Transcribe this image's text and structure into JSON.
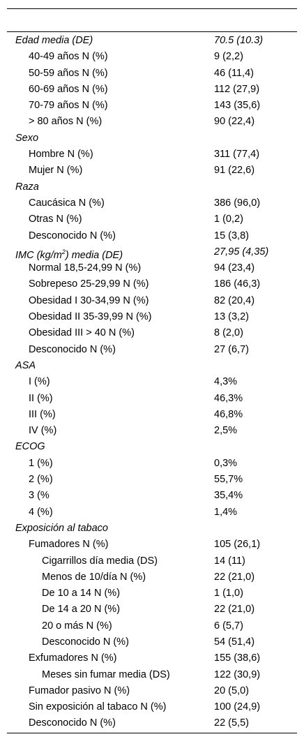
{
  "rows": [
    {
      "label": "Edad media (DE)",
      "value": "70.5 (10.3)",
      "level": 0
    },
    {
      "label": "40-49 años N (%)",
      "value": "9 (2,2)",
      "level": 1
    },
    {
      "label": "50-59 años N (%)",
      "value": "46 (11,4)",
      "level": 1
    },
    {
      "label": "60-69 años N (%)",
      "value": "112 (27,9)",
      "level": 1
    },
    {
      "label": "70-79 años N (%)",
      "value": "143 (35,6)",
      "level": 1
    },
    {
      "label": "> 80 años N (%)",
      "value": "90 (22,4)",
      "level": 1
    },
    {
      "label": "Sexo",
      "value": "",
      "level": 0
    },
    {
      "label": "Hombre N (%)",
      "value": "311 (77,4)",
      "level": 1
    },
    {
      "label": "Mujer N (%)",
      "value": "91 (22,6)",
      "level": 1
    },
    {
      "label": "Raza",
      "value": "",
      "level": 0
    },
    {
      "label": "Caucásica N (%)",
      "value": "386 (96,0)",
      "level": 1
    },
    {
      "label": "Otras N (%)",
      "value": "1 (0,2)",
      "level": 1
    },
    {
      "label": "Desconocido N (%)",
      "value": "15 (3,8)",
      "level": 1
    },
    {
      "label": "IMC (kg/m",
      "sup": "2",
      "label_after": ") media (DE)",
      "value": "27,95 (4,35)",
      "level": 0
    },
    {
      "label": "Normal 18,5-24,99 N (%)",
      "value": "94 (23,4)",
      "level": 1
    },
    {
      "label": "Sobrepeso 25-29,99 N (%)",
      "value": "186 (46,3)",
      "level": 1
    },
    {
      "label": "Obesidad I 30-34,99 N (%)",
      "value": "82 (20,4)",
      "level": 1
    },
    {
      "label": "Obesidad II 35-39,99 N (%)",
      "value": "13 (3,2)",
      "level": 1
    },
    {
      "label": "Obesidad III > 40 N (%)",
      "value": "8 (2,0)",
      "level": 1
    },
    {
      "label": "Desconocido N (%)",
      "value": "27 (6,7)",
      "level": 1
    },
    {
      "label": "ASA",
      "value": "",
      "level": 0
    },
    {
      "label": "I (%)",
      "value": "4,3%",
      "level": 1
    },
    {
      "label": "II (%)",
      "value": "46,3%",
      "level": 1
    },
    {
      "label": "III (%)",
      "value": "46,8%",
      "level": 1
    },
    {
      "label": "IV (%)",
      "value": "2,5%",
      "level": 1
    },
    {
      "label": "ECOG",
      "value": "",
      "level": 0
    },
    {
      "label": "1 (%)",
      "value": "0,3%",
      "level": 1
    },
    {
      "label": "2 (%)",
      "value": "55,7%",
      "level": 1
    },
    {
      "label": "3 (%",
      "value": "35,4%",
      "level": 1
    },
    {
      "label": "4 (%)",
      "value": "1,4%",
      "level": 1
    },
    {
      "label": "Exposición al tabaco",
      "value": "",
      "level": 0
    },
    {
      "label": "Fumadores N (%)",
      "value": "105 (26,1)",
      "level": 1
    },
    {
      "label": "Cigarrillos día media (DS)",
      "value": "14 (11)",
      "level": 2
    },
    {
      "label": "Menos de 10/día N (%)",
      "value": "22 (21,0)",
      "level": 2
    },
    {
      "label": "De 10 a 14 N (%)",
      "value": "1 (1,0)",
      "level": 2
    },
    {
      "label": "De 14 a 20 N (%)",
      "value": "22 (21,0)",
      "level": 2
    },
    {
      "label": "20 o más N (%)",
      "value": "6 (5,7)",
      "level": 2
    },
    {
      "label": "Desconocido N (%)",
      "value": "54 (51,4)",
      "level": 2
    },
    {
      "label": "Exfumadores N (%)",
      "value": "155 (38,6)",
      "level": 1
    },
    {
      "label": "Meses sin fumar media (DS)",
      "value": "122 (30,9)",
      "level": 2
    },
    {
      "label": "Fumador pasivo N (%)",
      "value": "20 (5,0)",
      "level": 1
    },
    {
      "label": "Sin exposición al tabaco N (%)",
      "value": "100 (24,9)",
      "level": 1
    },
    {
      "label": "Desconocido N (%)",
      "value": "22 (5,5)",
      "level": 1
    }
  ]
}
